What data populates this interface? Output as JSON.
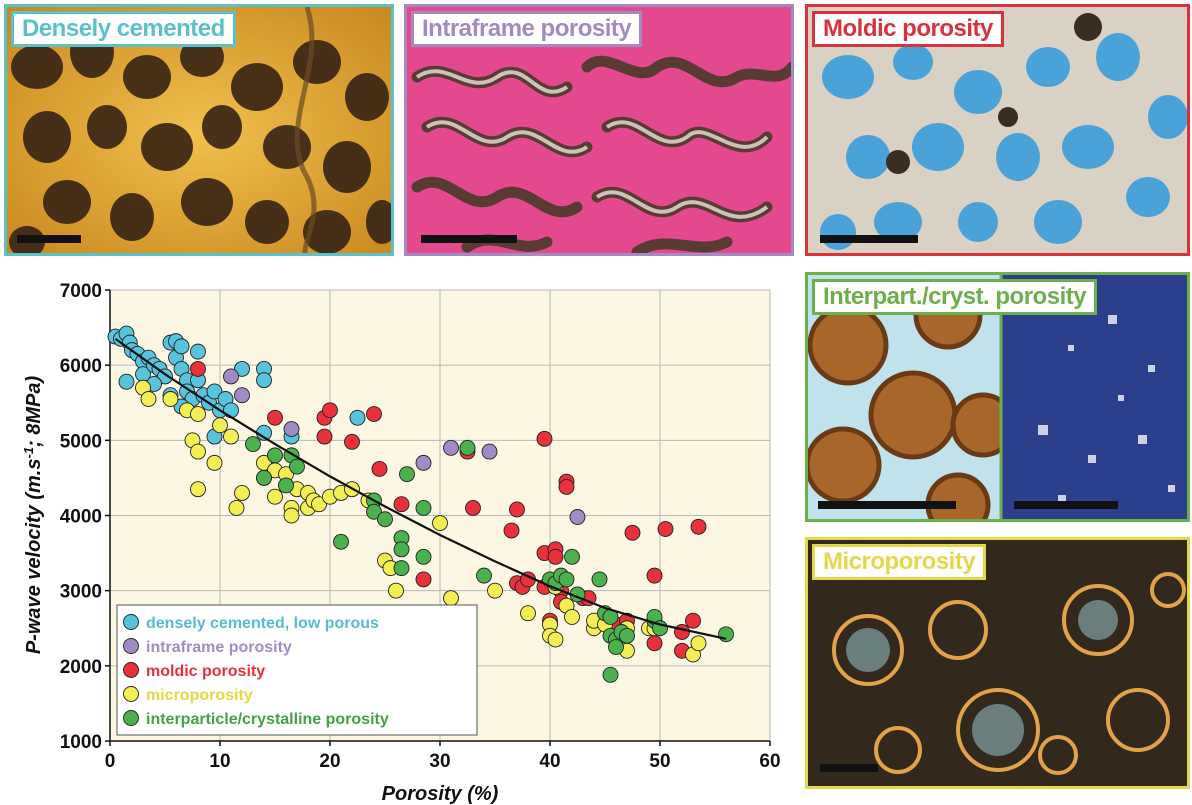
{
  "panels": {
    "densely": {
      "label": "Densely cemented",
      "color": "#5bc0c8"
    },
    "intraframe": {
      "label": "Intraframe porosity",
      "color": "#a48ac0"
    },
    "moldic": {
      "label": "Moldic porosity",
      "color": "#d8333c"
    },
    "interpart": {
      "label": "Interpart./cryst. porosity",
      "color": "#6cb04e"
    },
    "micro": {
      "label": "Microporosity",
      "color": "#e2d84a"
    }
  },
  "chart_data": {
    "type": "scatter",
    "xlabel": "Porosity (%)",
    "ylabel_main": "P-wave velocity (m.s",
    "ylabel_sup": "-1",
    "ylabel_end": "; 8MPa)",
    "xlim": [
      0,
      60
    ],
    "ylim": [
      1000,
      7000
    ],
    "xticks": [
      "0",
      "10",
      "20",
      "30",
      "40",
      "50",
      "60"
    ],
    "yticks": [
      "1000",
      "2000",
      "3000",
      "4000",
      "5000",
      "6000",
      "7000"
    ],
    "grid": true,
    "legend_position": "bottom-left",
    "series": [
      {
        "name": "densely cemented, low porous",
        "color": "#57c3dd",
        "text_color": "#57bcd0",
        "points": [
          [
            0.5,
            6380
          ],
          [
            1,
            6350
          ],
          [
            1.5,
            6420
          ],
          [
            1.8,
            6300
          ],
          [
            2,
            6200
          ],
          [
            2.5,
            6150
          ],
          [
            3,
            6050
          ],
          [
            3.5,
            6100
          ],
          [
            1.5,
            5780
          ],
          [
            3,
            5880
          ],
          [
            4,
            6000
          ],
          [
            4.5,
            5950
          ],
          [
            5,
            5850
          ],
          [
            5.5,
            6300
          ],
          [
            6,
            6320
          ],
          [
            6,
            6100
          ],
          [
            6.5,
            6250
          ],
          [
            6.5,
            5950
          ],
          [
            7,
            5800
          ],
          [
            7,
            5650
          ],
          [
            7.5,
            5550
          ],
          [
            6.5,
            5450
          ],
          [
            5.5,
            5600
          ],
          [
            4,
            5750
          ],
          [
            8,
            6180
          ],
          [
            8,
            5800
          ],
          [
            8.5,
            5600
          ],
          [
            9,
            5500
          ],
          [
            9.5,
            5650
          ],
          [
            10,
            5400
          ],
          [
            10.5,
            5550
          ],
          [
            11,
            5400
          ],
          [
            9.5,
            5050
          ],
          [
            12,
            5950
          ],
          [
            14,
            5950
          ],
          [
            14,
            5800
          ],
          [
            16.5,
            5050
          ],
          [
            22.5,
            5300
          ],
          [
            14,
            5100
          ]
        ]
      },
      {
        "name": "intraframe porosity",
        "color": "#a18bc6",
        "text_color": "#a18bc6",
        "points": [
          [
            11,
            5850
          ],
          [
            12,
            5600
          ],
          [
            16.5,
            5150
          ],
          [
            28.5,
            4700
          ],
          [
            31,
            4900
          ],
          [
            34.5,
            4850
          ],
          [
            42.5,
            3980
          ]
        ]
      },
      {
        "name": "moldic porosity",
        "color": "#e8313b",
        "text_color": "#e5313b",
        "points": [
          [
            8,
            5950
          ],
          [
            15,
            5300
          ],
          [
            19.5,
            5300
          ],
          [
            20,
            5400
          ],
          [
            19.5,
            5050
          ],
          [
            22,
            4980
          ],
          [
            24,
            5350
          ],
          [
            24.5,
            4620
          ],
          [
            26.5,
            4150
          ],
          [
            28.5,
            3150
          ],
          [
            32.5,
            4850
          ],
          [
            33,
            4100
          ],
          [
            36.5,
            3800
          ],
          [
            37,
            4080
          ],
          [
            37,
            3100
          ],
          [
            37.5,
            3050
          ],
          [
            38,
            3150
          ],
          [
            39.5,
            3050
          ],
          [
            39.5,
            5020
          ],
          [
            39.5,
            3500
          ],
          [
            40,
            2600
          ],
          [
            40.5,
            3550
          ],
          [
            40.5,
            3450
          ],
          [
            41,
            3000
          ],
          [
            41,
            2850
          ],
          [
            41.5,
            4450
          ],
          [
            41.5,
            4380
          ],
          [
            43,
            2900
          ],
          [
            43.5,
            2900
          ],
          [
            45,
            2650
          ],
          [
            46,
            2550
          ],
          [
            47,
            2600
          ],
          [
            47.5,
            3770
          ],
          [
            49.5,
            3200
          ],
          [
            49.5,
            2300
          ],
          [
            50.5,
            3820
          ],
          [
            52,
            2450
          ],
          [
            52,
            2200
          ],
          [
            53,
            2600
          ],
          [
            53.5,
            3850
          ]
        ]
      },
      {
        "name": "microporosity",
        "color": "#f4ee55",
        "text_color": "#e6d83f",
        "points": [
          [
            3,
            5700
          ],
          [
            3.5,
            5550
          ],
          [
            5.5,
            5550
          ],
          [
            7,
            5400
          ],
          [
            8,
            5350
          ],
          [
            7.5,
            5000
          ],
          [
            8,
            4850
          ],
          [
            8,
            4350
          ],
          [
            9.5,
            4700
          ],
          [
            10,
            5200
          ],
          [
            11,
            5050
          ],
          [
            11.5,
            4100
          ],
          [
            12,
            4300
          ],
          [
            14,
            4700
          ],
          [
            14,
            4500
          ],
          [
            15,
            4600
          ],
          [
            15,
            4250
          ],
          [
            16,
            4550
          ],
          [
            16.5,
            4100
          ],
          [
            16.5,
            4000
          ],
          [
            17,
            4350
          ],
          [
            18,
            4300
          ],
          [
            18,
            4100
          ],
          [
            18.5,
            4200
          ],
          [
            19,
            4150
          ],
          [
            20,
            4250
          ],
          [
            21,
            4300
          ],
          [
            22,
            4350
          ],
          [
            23.5,
            4200
          ],
          [
            25,
            3400
          ],
          [
            25.5,
            3300
          ],
          [
            26,
            3000
          ],
          [
            30,
            3900
          ],
          [
            31,
            2900
          ],
          [
            35,
            3000
          ],
          [
            38,
            2700
          ],
          [
            40,
            2550
          ],
          [
            40,
            2400
          ],
          [
            40.5,
            2350
          ],
          [
            40.5,
            3050
          ],
          [
            41.5,
            2800
          ],
          [
            42,
            2650
          ],
          [
            44,
            2500
          ],
          [
            44,
            2600
          ],
          [
            45,
            2550
          ],
          [
            46.5,
            2350
          ],
          [
            47,
            2200
          ],
          [
            47,
            2500
          ],
          [
            49,
            2500
          ],
          [
            49.5,
            2500
          ],
          [
            53,
            2150
          ],
          [
            53.5,
            2300
          ]
        ]
      },
      {
        "name": "interparticle/crystalline porosity",
        "color": "#4bb14d",
        "text_color": "#47a047",
        "points": [
          [
            13,
            4950
          ],
          [
            14,
            4500
          ],
          [
            15,
            4800
          ],
          [
            16,
            4400
          ],
          [
            16.5,
            4800
          ],
          [
            17,
            4650
          ],
          [
            21,
            3650
          ],
          [
            24,
            4200
          ],
          [
            24,
            4050
          ],
          [
            25,
            3950
          ],
          [
            26.5,
            3700
          ],
          [
            26.5,
            3550
          ],
          [
            26.5,
            3300
          ],
          [
            27,
            4550
          ],
          [
            28.5,
            4100
          ],
          [
            28.5,
            3450
          ],
          [
            32.5,
            4900
          ],
          [
            34,
            3200
          ],
          [
            40,
            3150
          ],
          [
            40.5,
            3100
          ],
          [
            41,
            3200
          ],
          [
            41.5,
            3150
          ],
          [
            42,
            3450
          ],
          [
            42.5,
            2950
          ],
          [
            44.5,
            3150
          ],
          [
            45,
            2700
          ],
          [
            45.5,
            2650
          ],
          [
            45.5,
            2400
          ],
          [
            46,
            2350
          ],
          [
            46,
            2250
          ],
          [
            46.5,
            2450
          ],
          [
            47,
            2400
          ],
          [
            49.5,
            2600
          ],
          [
            49.5,
            2650
          ],
          [
            50,
            2500
          ],
          [
            45.5,
            1880
          ],
          [
            56,
            2420
          ]
        ]
      }
    ],
    "trendline": [
      [
        0.5,
        6350
      ],
      [
        5,
        5880
      ],
      [
        10,
        5400
      ],
      [
        15,
        4950
      ],
      [
        20,
        4520
      ],
      [
        25,
        4120
      ],
      [
        30,
        3740
      ],
      [
        35,
        3390
      ],
      [
        40,
        3060
      ],
      [
        45,
        2770
      ],
      [
        50,
        2550
      ],
      [
        56,
        2360
      ]
    ]
  }
}
